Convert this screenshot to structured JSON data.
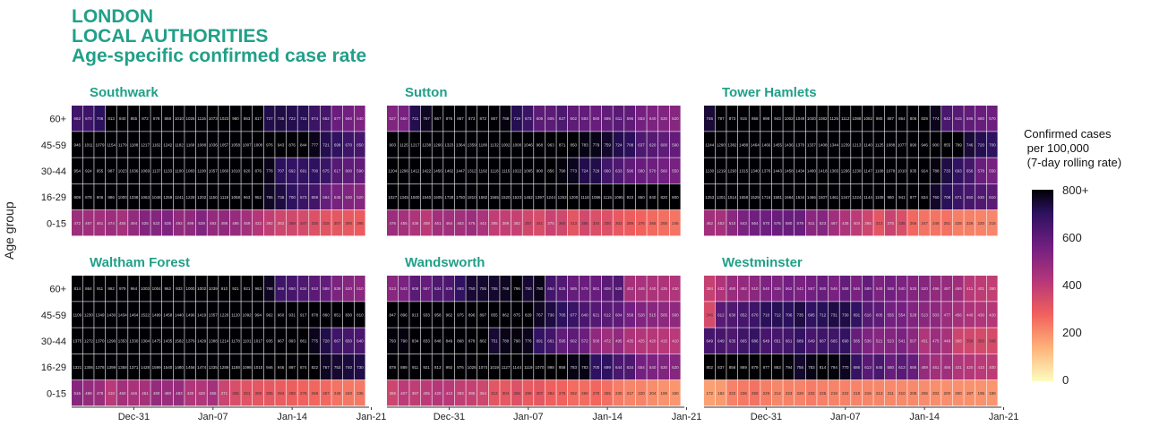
{
  "title_lines": [
    "LONDON",
    "LOCAL AUTHORITIES",
    "Age-specific confirmed case rate"
  ],
  "colors": {
    "title": "#21a088"
  },
  "legend": {
    "title_lines": [
      "Confirmed cases",
      " per 100,000",
      " (7-day rolling rate)"
    ],
    "ticks": [
      "800+",
      "600",
      "400",
      "200",
      "0"
    ],
    "scale_max": 800
  },
  "chart_data": {
    "type": "heatmap",
    "ylabel": "Age group",
    "age_groups": [
      "60+",
      "45-59",
      "30-44",
      "16-29",
      "0-15"
    ],
    "x_ticks": [
      "Dec-31",
      "Jan-07",
      "Jan-14",
      "Jan-21"
    ],
    "days": [
      "Dec-26",
      "Dec-27",
      "Dec-28",
      "Dec-29",
      "Dec-30",
      "Dec-31",
      "Jan-01",
      "Jan-02",
      "Jan-03",
      "Jan-04",
      "Jan-05",
      "Jan-06",
      "Jan-07",
      "Jan-08",
      "Jan-09",
      "Jan-10",
      "Jan-11",
      "Jan-12",
      "Jan-13",
      "Jan-14",
      "Jan-15",
      "Jan-16",
      "Jan-17",
      "Jan-18",
      "Jan-19",
      "Jan-20"
    ],
    "panels": [
      {
        "name": "Southwark",
        "rows": [
          [
            662,
            670,
            706,
            813,
            840,
            855,
            872,
            878,
            868,
            1010,
            1026,
            1116,
            1073,
            1023,
            980,
            863,
            817,
            727,
            735,
            722,
            715,
            674,
            652,
            577,
            560,
            540
          ],
          [
            946,
            1011,
            1079,
            1154,
            1179,
            1188,
            1217,
            1162,
            1242,
            1182,
            1168,
            1088,
            1036,
            1057,
            1058,
            1007,
            1000,
            976,
            943,
            876,
            844,
            777,
            721,
            698,
            670,
            650
          ],
          [
            954,
            924,
            955,
            987,
            1023,
            1036,
            1069,
            1137,
            1133,
            1100,
            1083,
            1100,
            1057,
            1060,
            1010,
            920,
            876,
            778,
            707,
            692,
            691,
            700,
            675,
            617,
            600,
            590
          ],
          [
            908,
            878,
            906,
            986,
            1000,
            1038,
            1063,
            1048,
            1259,
            1241,
            1228,
            1202,
            1150,
            1119,
            1058,
            963,
            952,
            765,
            736,
            700,
            673,
            659,
            584,
            545,
            530,
            520
          ],
          [
            472,
            467,
            461,
            474,
            455,
            494,
            525,
            522,
            535,
            493,
            499,
            529,
            492,
            498,
            486,
            459,
            422,
            392,
            362,
            359,
            347,
            330,
            318,
            307,
            300,
            295
          ]
        ]
      },
      {
        "name": "Sutton",
        "rows": [
          [
            527,
            550,
            721,
            767,
            867,
            876,
            867,
            873,
            872,
            867,
            788,
            719,
            673,
            605,
            605,
            637,
            602,
            593,
            580,
            595,
            611,
            596,
            553,
            540,
            530,
            520
          ],
          [
            903,
            1125,
            1217,
            1238,
            1266,
            1323,
            1364,
            1359,
            1180,
            1132,
            1002,
            1000,
            1046,
            968,
            963,
            871,
            850,
            783,
            779,
            759,
            724,
            708,
            637,
            620,
            600,
            590
          ],
          [
            1204,
            1296,
            1412,
            1422,
            1456,
            1462,
            1447,
            1312,
            1192,
            1118,
            1115,
            1022,
            1005,
            900,
            856,
            790,
            773,
            724,
            729,
            660,
            633,
            596,
            580,
            570,
            560,
            550
          ],
          [
            1027,
            1345,
            1500,
            1540,
            1605,
            1728,
            1750,
            1810,
            1582,
            1565,
            1520,
            1523,
            1452,
            1397,
            1244,
            1253,
            1200,
            1118,
            1086,
            1115,
            1095,
            923,
            860,
            840,
            820,
            800
          ],
          [
            476,
            455,
            436,
            408,
            461,
            464,
            463,
            476,
            443,
            395,
            389,
            382,
            357,
            341,
            375,
            360,
            313,
            356,
            334,
            330,
            302,
            289,
            276,
            265,
            255,
            245
          ]
        ]
      },
      {
        "name": "Tower Hamlets",
        "rows": [
          [
            746,
            797,
            873,
            915,
            958,
            998,
            943,
            1002,
            1049,
            1030,
            1082,
            1125,
            1112,
            1088,
            1082,
            980,
            887,
            864,
            806,
            829,
            774,
            642,
            615,
            595,
            580,
            570
          ],
          [
            1244,
            1290,
            1382,
            1488,
            1464,
            1466,
            1455,
            1436,
            1370,
            1337,
            1408,
            1344,
            1239,
            1213,
            1140,
            1125,
            1088,
            1077,
            990,
            946,
            900,
            855,
            799,
            746,
            720,
            700
          ],
          [
            1130,
            1219,
            1293,
            1315,
            1340,
            1376,
            1443,
            1458,
            1434,
            1400,
            1418,
            1365,
            1266,
            1230,
            1147,
            1108,
            1078,
            1010,
            935,
            924,
            788,
            733,
            693,
            656,
            578,
            550
          ],
          [
            1253,
            1301,
            1514,
            1558,
            1529,
            1716,
            1581,
            1684,
            1534,
            1466,
            1507,
            1461,
            1347,
            1224,
            1144,
            1108,
            980,
            941,
            877,
            834,
            760,
            708,
            671,
            650,
            630,
            610
          ],
          [
            462,
            453,
            510,
            543,
            564,
            570,
            576,
            580,
            579,
            511,
            523,
            467,
            435,
            404,
            365,
            313,
            375,
            336,
            266,
            247,
            246,
            251,
            228,
            226,
            220,
            215
          ]
        ]
      },
      {
        "name": "Waltham Forest",
        "rows": [
          [
            814,
            864,
            911,
            962,
            979,
            964,
            1003,
            1004,
            962,
            933,
            1000,
            1002,
            1039,
            910,
            921,
            921,
            963,
            768,
            666,
            650,
            634,
            610,
            588,
            539,
            520,
            510
          ],
          [
            1109,
            1230,
            1349,
            1430,
            1434,
            1464,
            1522,
            1499,
            1458,
            1440,
            1496,
            1419,
            1357,
            1228,
            1120,
            1092,
            994,
            962,
            960,
            931,
            917,
            878,
            860,
            851,
            830,
            810
          ],
          [
            1375,
            1272,
            1370,
            1290,
            1353,
            1330,
            1304,
            1475,
            1435,
            1582,
            1379,
            1429,
            1388,
            1214,
            1178,
            1101,
            1017,
            935,
            967,
            893,
            861,
            775,
            728,
            667,
            650,
            640
          ],
          [
            1321,
            1306,
            1378,
            1399,
            1358,
            1371,
            1428,
            1599,
            1540,
            1480,
            1456,
            1474,
            1335,
            1289,
            1188,
            1098,
            1010,
            946,
            946,
            897,
            874,
            822,
            767,
            753,
            740,
            730
          ],
          [
            516,
            489,
            478,
            410,
            460,
            446,
            451,
            490,
            480,
            483,
            430,
            428,
            455,
            371,
            336,
            321,
            309,
            305,
            294,
            288,
            276,
            269,
            267,
            248,
            240,
            235
          ]
        ]
      },
      {
        "name": "Wandsworth",
        "rows": [
          [
            513,
            543,
            608,
            587,
            634,
            639,
            693,
            750,
            755,
            755,
            768,
            796,
            750,
            780,
            654,
            625,
            585,
            579,
            581,
            608,
            628,
            453,
            448,
            440,
            435,
            430
          ],
          [
            847,
            896,
            913,
            933,
            958,
            962,
            975,
            896,
            897,
            855,
            862,
            875,
            829,
            767,
            736,
            705,
            677,
            640,
            621,
            612,
            604,
            558,
            528,
            515,
            505,
            500
          ],
          [
            793,
            790,
            834,
            833,
            848,
            849,
            868,
            878,
            802,
            751,
            780,
            790,
            776,
            691,
            661,
            595,
            602,
            572,
            500,
            472,
            495,
            435,
            425,
            420,
            415,
            410
          ],
          [
            878,
            889,
            911,
            921,
            813,
            992,
            876,
            1026,
            1074,
            1019,
            1127,
            1144,
            1119,
            1070,
            998,
            958,
            783,
            783,
            700,
            699,
            644,
            634,
            554,
            540,
            530,
            520
          ],
          [
            365,
            407,
            397,
            405,
            420,
            413,
            393,
            385,
            364,
            312,
            304,
            326,
            299,
            307,
            284,
            276,
            262,
            260,
            270,
            255,
            230,
            217,
            220,
            204,
            195,
            190
          ]
        ]
      },
      {
        "name": "Westminster",
        "rows": [
          [
            384,
            432,
            480,
            492,
            510,
            540,
            536,
            562,
            542,
            557,
            580,
            546,
            588,
            546,
            589,
            540,
            558,
            540,
            525,
            520,
            496,
            487,
            469,
            411,
            401,
            390
          ],
          [
            346,
            612,
            630,
            652,
            670,
            710,
            712,
            706,
            735,
            695,
            712,
            731,
            730,
            691,
            616,
            605,
            555,
            554,
            528,
            513,
            503,
            477,
            456,
            440,
            430,
            420
          ],
          [
            649,
            649,
            635,
            665,
            686,
            649,
            651,
            661,
            689,
            649,
            667,
            665,
            690,
            585,
            536,
            521,
            523,
            541,
            507,
            431,
            475,
            449,
            368,
            358,
            350,
            345
          ],
          [
            802,
            837,
            856,
            869,
            879,
            877,
            863,
            794,
            756,
            783,
            814,
            794,
            770,
            686,
            613,
            645,
            580,
            613,
            586,
            489,
            461,
            466,
            431,
            420,
            410,
            400
          ],
          [
            172,
            182,
            222,
            236,
            250,
            229,
            214,
            223,
            220,
            232,
            225,
            219,
            222,
            218,
            216,
            213,
            211,
            210,
            208,
            206,
            202,
            200,
            200,
            197,
            195,
            190
          ]
        ]
      }
    ]
  }
}
